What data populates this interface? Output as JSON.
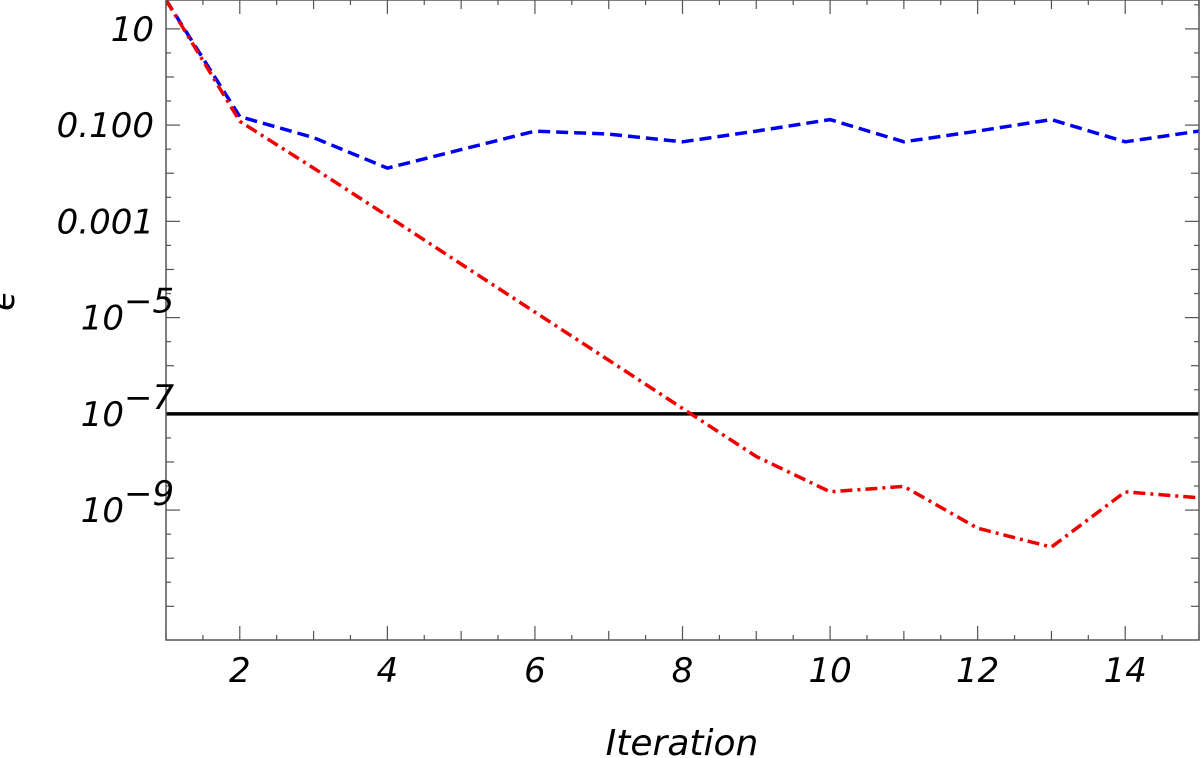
{
  "chart_data": {
    "type": "line",
    "xlabel": "Iteration",
    "ylabel": "ϵ",
    "xlim": [
      1,
      15
    ],
    "ylim_log10": [
      -11.7,
      1.6
    ],
    "yscale": "log",
    "x_ticks": [
      2,
      4,
      6,
      8,
      10,
      12,
      14
    ],
    "y_ticks": [
      {
        "log10": 1,
        "label": "10",
        "exp": ""
      },
      {
        "log10": -1,
        "label": "0.100",
        "exp": ""
      },
      {
        "log10": -3,
        "label": "0.001",
        "exp": ""
      },
      {
        "log10": -5,
        "label": "10",
        "exp": "−5"
      },
      {
        "log10": -7,
        "label": "10",
        "exp": "−7"
      },
      {
        "log10": -9,
        "label": "10",
        "exp": "−9"
      }
    ],
    "series": [
      {
        "color": "#0000ee",
        "dash": "dashed",
        "x": [
          1,
          2,
          3,
          4,
          5,
          6,
          7,
          8,
          9,
          10,
          11,
          12,
          13,
          14,
          15
        ],
        "y": [
          40,
          0.15,
          0.055,
          0.0128,
          0.031,
          0.075,
          0.065,
          0.045,
          0.075,
          0.13,
          0.045,
          0.075,
          0.13,
          0.045,
          0.075
        ]
      },
      {
        "color": "#ee0000",
        "dash": "dashdot",
        "x": [
          1,
          2,
          3,
          4,
          5,
          6,
          7,
          8,
          9,
          10,
          11,
          12,
          13,
          14,
          15
        ],
        "y": [
          40,
          0.12,
          0.0128,
          0.0013,
          0.00013,
          1.3e-05,
          1.3e-06,
          1.3e-07,
          1.3e-08,
          2.4e-09,
          3.1e-09,
          4.2e-10,
          1.7e-10,
          2.4e-09,
          1.8e-09
        ]
      }
    ],
    "reference_lines": [
      {
        "y": 1e-07,
        "color": "#000000"
      }
    ]
  }
}
